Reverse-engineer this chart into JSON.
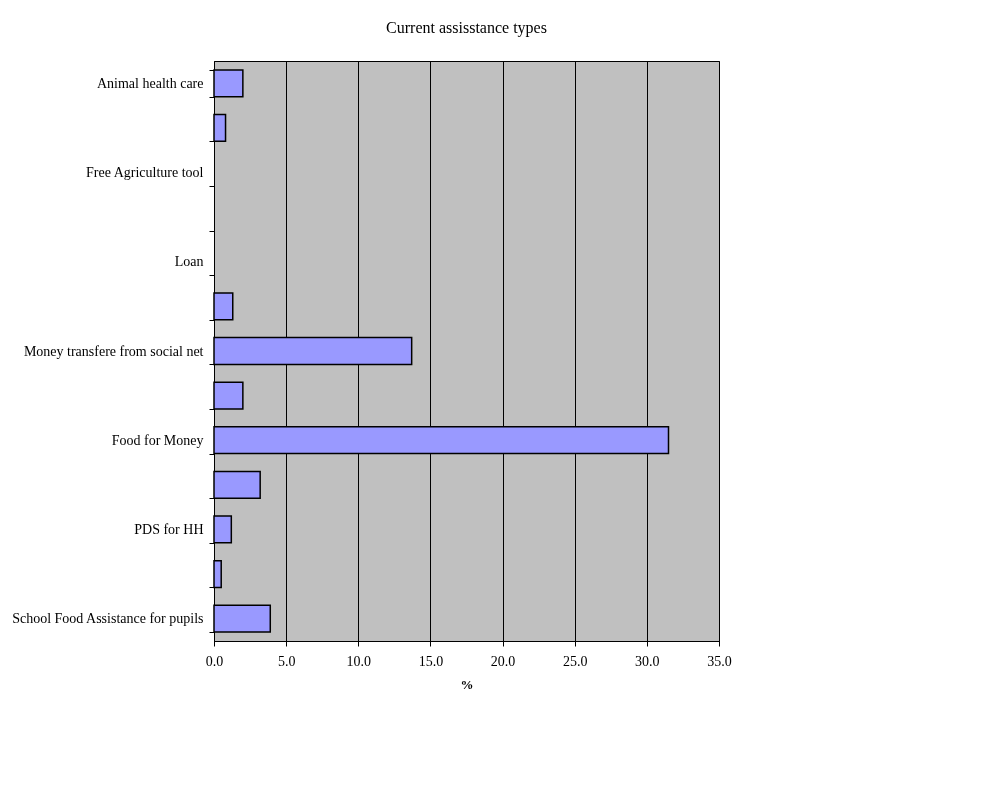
{
  "chart_data": {
    "type": "bar",
    "orientation": "horizontal",
    "title": "Current assisstance types",
    "xlabel": "%",
    "categories": [
      "Animal health care",
      null,
      "Free Agriculture tool",
      null,
      "Loan",
      null,
      "Money transfere from social net",
      null,
      "Food for Money",
      null,
      "PDS for HH",
      null,
      "School Food Assistance for pupils"
    ],
    "values": [
      2.0,
      0.8,
      null,
      null,
      null,
      1.3,
      13.7,
      2.0,
      31.5,
      3.2,
      1.2,
      0.5,
      3.9
    ],
    "color": "#9999ff",
    "xlim": [
      0,
      35
    ],
    "xticks": [
      {
        "value": 0,
        "label": "0.0"
      },
      {
        "value": 5,
        "label": "5.0"
      },
      {
        "value": 10,
        "label": "10.0"
      },
      {
        "value": 15,
        "label": "15.0"
      },
      {
        "value": 20,
        "label": "20.0"
      },
      {
        "value": 25,
        "label": "25.0"
      },
      {
        "value": 30,
        "label": "30.0"
      },
      {
        "value": 35,
        "label": "35.0"
      }
    ],
    "grid": "x"
  }
}
